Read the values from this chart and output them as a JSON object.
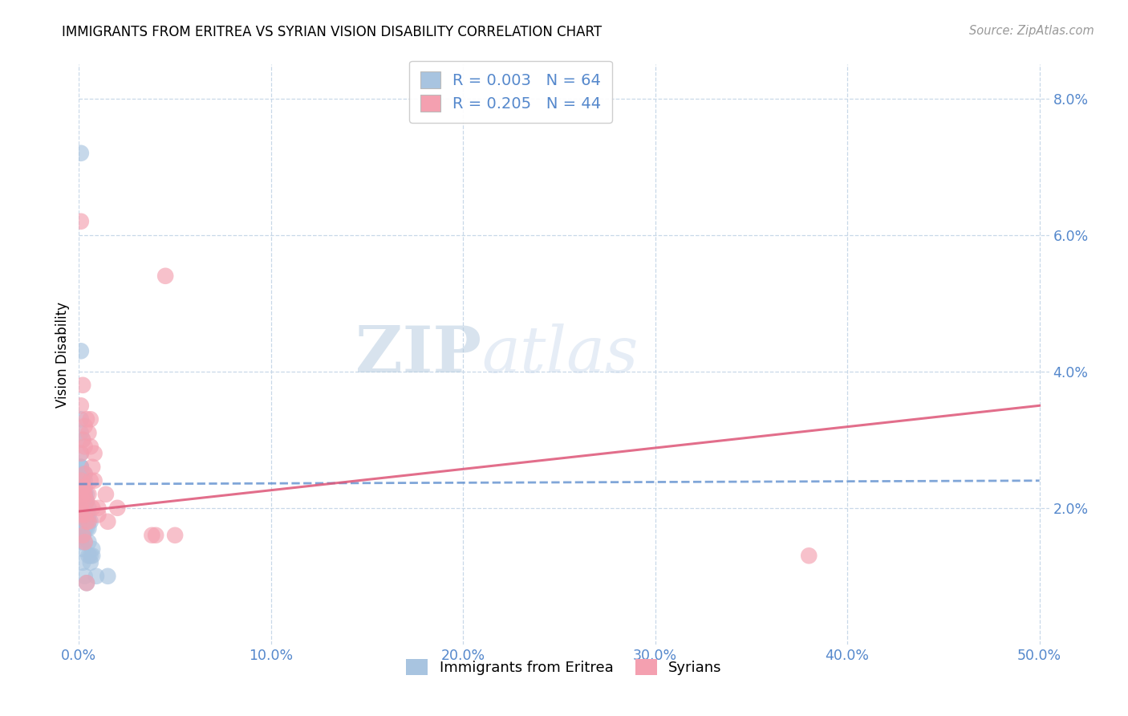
{
  "title": "IMMIGRANTS FROM ERITREA VS SYRIAN VISION DISABILITY CORRELATION CHART",
  "source": "Source: ZipAtlas.com",
  "ylabel": "Vision Disability",
  "watermark_zip": "ZIP",
  "watermark_atlas": "atlas",
  "xlim": [
    0.0,
    0.505
  ],
  "ylim": [
    0.0,
    0.085
  ],
  "xtick_vals": [
    0.0,
    0.1,
    0.2,
    0.3,
    0.4,
    0.5
  ],
  "ytick_vals": [
    0.02,
    0.04,
    0.06,
    0.08
  ],
  "blue_scatter_color": "#a8c4e0",
  "pink_scatter_color": "#f4a0b0",
  "blue_line_color": "#5588cc",
  "pink_line_color": "#dd5577",
  "tick_color": "#5588cc",
  "grid_color": "#c8d8e8",
  "R_eritrea": "0.003",
  "N_eritrea": "64",
  "R_syrian": "0.205",
  "N_syrian": "44",
  "legend_label_eritrea": "Immigrants from Eritrea",
  "legend_label_syrian": "Syrians",
  "eritrea_line_x": [
    0.0,
    0.5
  ],
  "eritrea_line_y": [
    0.0235,
    0.024
  ],
  "syrian_line_x": [
    0.0,
    0.5
  ],
  "syrian_line_y": [
    0.0195,
    0.035
  ],
  "eritrea_x": [
    0.001,
    0.002,
    0.001,
    0.003,
    0.002,
    0.001,
    0.004,
    0.003,
    0.002,
    0.001,
    0.002,
    0.003,
    0.001,
    0.002,
    0.001,
    0.003,
    0.002,
    0.005,
    0.004,
    0.003,
    0.002,
    0.001,
    0.003,
    0.002,
    0.001,
    0.005,
    0.006,
    0.003,
    0.002,
    0.001,
    0.004,
    0.003,
    0.002,
    0.005,
    0.004,
    0.001,
    0.003,
    0.002,
    0.001,
    0.005,
    0.004,
    0.003,
    0.002,
    0.005,
    0.001,
    0.007,
    0.006,
    0.005,
    0.001,
    0.002,
    0.007,
    0.006,
    0.001,
    0.002,
    0.001,
    0.001,
    0.003,
    0.004,
    0.015,
    0.001,
    0.002,
    0.003,
    0.009,
    0.001
  ],
  "eritrea_y": [
    0.033,
    0.03,
    0.028,
    0.025,
    0.024,
    0.023,
    0.022,
    0.021,
    0.02,
    0.026,
    0.022,
    0.024,
    0.026,
    0.025,
    0.023,
    0.022,
    0.021,
    0.02,
    0.019,
    0.019,
    0.02,
    0.021,
    0.022,
    0.021,
    0.031,
    0.019,
    0.018,
    0.018,
    0.019,
    0.043,
    0.021,
    0.02,
    0.019,
    0.018,
    0.017,
    0.026,
    0.022,
    0.016,
    0.016,
    0.017,
    0.018,
    0.017,
    0.016,
    0.015,
    0.024,
    0.013,
    0.012,
    0.013,
    0.021,
    0.014,
    0.014,
    0.013,
    0.019,
    0.012,
    0.015,
    0.018,
    0.01,
    0.009,
    0.01,
    0.017,
    0.016,
    0.015,
    0.01,
    0.072
  ],
  "syrian_x": [
    0.001,
    0.002,
    0.001,
    0.003,
    0.002,
    0.001,
    0.001,
    0.003,
    0.002,
    0.001,
    0.002,
    0.003,
    0.001,
    0.004,
    0.003,
    0.005,
    0.006,
    0.004,
    0.007,
    0.002,
    0.01,
    0.003,
    0.02,
    0.005,
    0.008,
    0.015,
    0.04,
    0.006,
    0.038,
    0.045,
    0.003,
    0.004,
    0.005,
    0.006,
    0.38,
    0.007,
    0.008,
    0.014,
    0.01,
    0.05,
    0.003,
    0.002,
    0.001,
    0.004
  ],
  "syrian_y": [
    0.035,
    0.03,
    0.028,
    0.025,
    0.022,
    0.02,
    0.024,
    0.022,
    0.021,
    0.019,
    0.038,
    0.023,
    0.02,
    0.018,
    0.019,
    0.022,
    0.024,
    0.021,
    0.02,
    0.023,
    0.019,
    0.029,
    0.02,
    0.018,
    0.028,
    0.018,
    0.016,
    0.033,
    0.016,
    0.054,
    0.032,
    0.033,
    0.031,
    0.029,
    0.013,
    0.026,
    0.024,
    0.022,
    0.02,
    0.016,
    0.015,
    0.016,
    0.062,
    0.009
  ]
}
